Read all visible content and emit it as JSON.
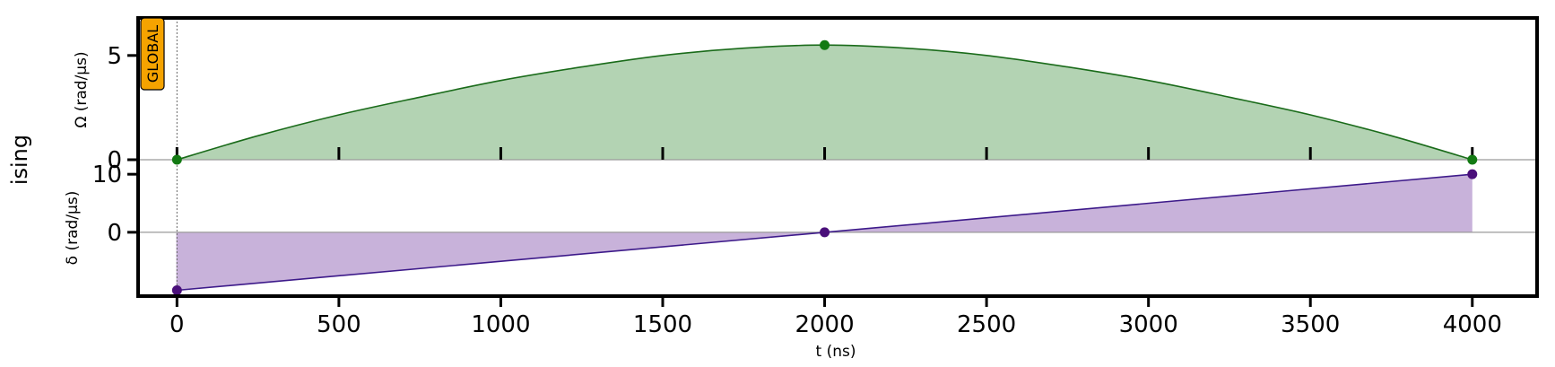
{
  "chart_data": {
    "type": "area",
    "row_label": "ising",
    "channel_badge": "GLOBAL",
    "xlabel": "t (ns)",
    "xlim": [
      -120,
      4200
    ],
    "x_ticks": [
      0,
      500,
      1000,
      1500,
      2000,
      2500,
      3000,
      3500,
      4000
    ],
    "subplots": [
      {
        "name": "amplitude",
        "ylabel": "Ω (rad/µs)",
        "ylim": [
          0,
          6.8
        ],
        "y_ticks": [
          0,
          5
        ],
        "line_color": "#1a6b1a",
        "fill_color": "#b3d3b3",
        "point_color": "#137a13",
        "x": [
          0,
          250,
          500,
          750,
          1000,
          1250,
          1500,
          1750,
          2000,
          2250,
          2500,
          2750,
          3000,
          3250,
          3500,
          3750,
          4000
        ],
        "y": [
          0.0,
          1.15,
          2.15,
          3.0,
          3.8,
          4.45,
          5.0,
          5.35,
          5.5,
          5.35,
          5.0,
          4.45,
          3.8,
          3.0,
          2.15,
          1.15,
          0.0
        ],
        "markers": [
          [
            0,
            0.0
          ],
          [
            2000,
            5.5
          ],
          [
            4000,
            0.0
          ]
        ]
      },
      {
        "name": "detuning",
        "ylabel": "δ (rad/µs)",
        "ylim": [
          -11,
          12.5
        ],
        "y_ticks": [
          0,
          10
        ],
        "line_color": "#3d1a8a",
        "fill_color": "#c8b2da",
        "point_color": "#4a0f7a",
        "x": [
          0,
          2000,
          4000
        ],
        "y": [
          -10,
          0,
          10
        ],
        "markers": [
          [
            0,
            -10
          ],
          [
            2000,
            0
          ],
          [
            4000,
            10
          ]
        ]
      }
    ]
  }
}
